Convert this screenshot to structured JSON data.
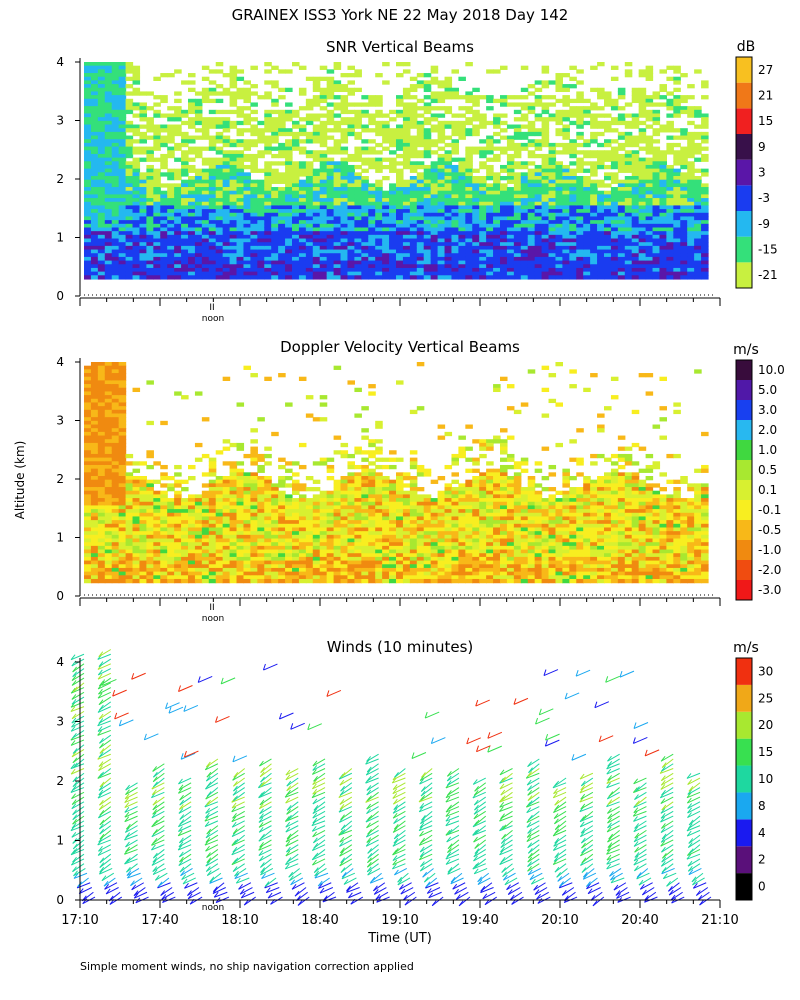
{
  "title": "GRAINEX ISS3 York NE  22 May 2018 Day 142",
  "shared_ylabel": "Altitude (km)",
  "footnote": "Simple moment winds, no ship navigation correction applied",
  "noon_label": "noon",
  "noon_marker": "II",
  "chart_data": [
    {
      "type": "heatmap",
      "title": "SNR Vertical Beams",
      "units": "dB",
      "ylim": [
        0,
        4
      ],
      "yticks": [
        "0",
        "1",
        "2",
        "3",
        "4"
      ],
      "xlim_utc_hours": [
        17.1667,
        21.1667
      ],
      "color_levels": [
        "-21",
        "-15",
        "-9",
        "-3",
        "3",
        "9",
        "15",
        "21",
        "27"
      ],
      "colors": [
        "#c8f040",
        "#34e07a",
        "#24b8f0",
        "#1a3cf0",
        "#5a16a8",
        "#38104a",
        "#f02020",
        "#f07818",
        "#f8c020"
      ]
    },
    {
      "type": "heatmap",
      "title": "Doppler Velocity Vertical Beams",
      "units": "m/s",
      "ylim": [
        0,
        4
      ],
      "yticks": [
        "0",
        "1",
        "2",
        "3",
        "4"
      ],
      "xlim_utc_hours": [
        17.1667,
        21.1667
      ],
      "color_levels": [
        "-3.0",
        "-2.0",
        "-1.0",
        "-0.5",
        "-0.1",
        "0.1",
        "0.5",
        "1.0",
        "2.0",
        "3.0",
        "5.0",
        "10.0"
      ],
      "colors": [
        "#f01818",
        "#f04c10",
        "#f08a10",
        "#f8b818",
        "#f8ee20",
        "#d8f030",
        "#a8e830",
        "#40d840",
        "#28b8f0",
        "#1840f0",
        "#5018a8",
        "#380c3c"
      ]
    },
    {
      "type": "wind_barbs",
      "title": "Winds (10 minutes)",
      "units": "m/s",
      "ylim": [
        0,
        4
      ],
      "yticks": [
        "0",
        "1",
        "2",
        "3",
        "4"
      ],
      "xlabel": "Time (UT)",
      "xticks": [
        "17:10",
        "17:40",
        "18:10",
        "18:40",
        "19:10",
        "19:40",
        "20:10",
        "20:40",
        "21:10"
      ],
      "color_levels": [
        "0",
        "2",
        "4",
        "8",
        "10",
        "15",
        "20",
        "25",
        "30"
      ],
      "colors": [
        "#000000",
        "#5a107a",
        "#1a1af0",
        "#1aa8f0",
        "#1ed8a0",
        "#38e050",
        "#a8e830",
        "#f0a818",
        "#f03010"
      ]
    }
  ]
}
